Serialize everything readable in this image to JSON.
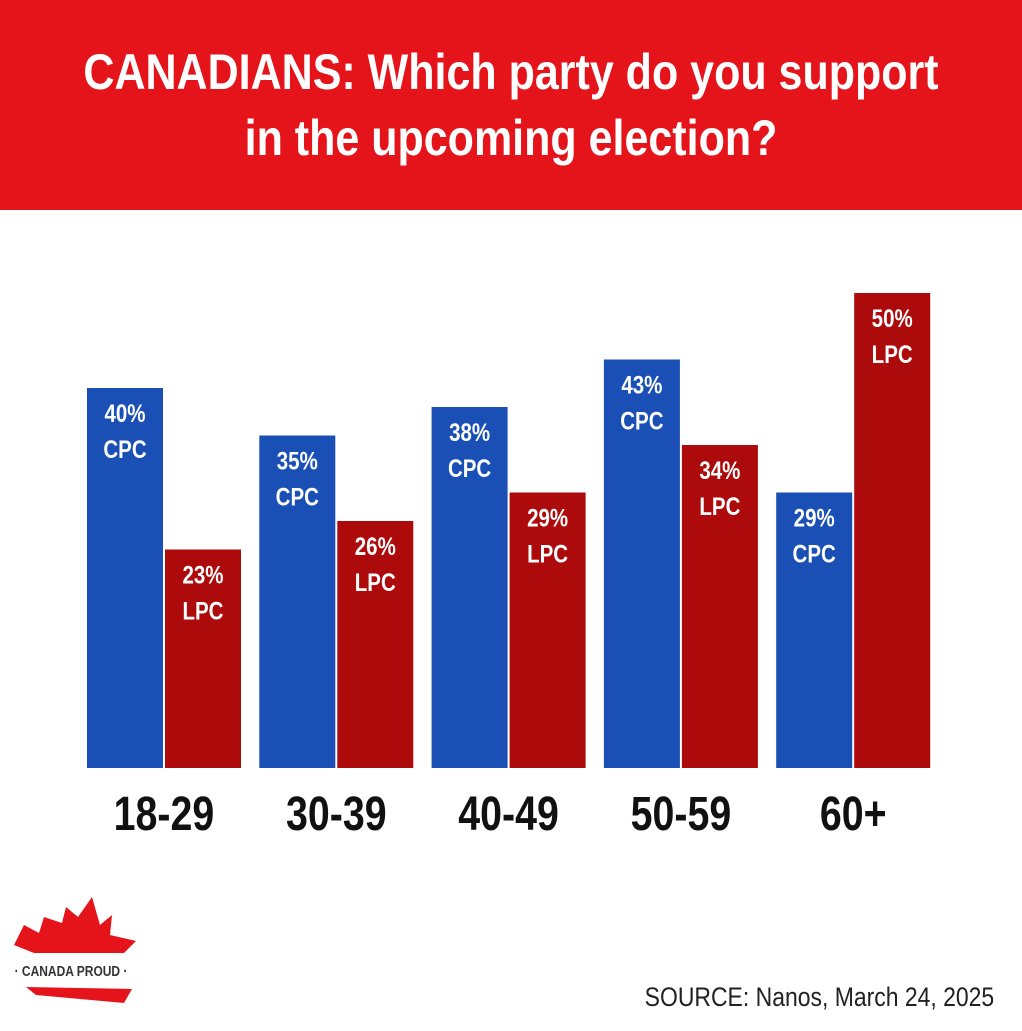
{
  "title": "CANADIANS: Which party do you support in the upcoming election?",
  "source": "SOURCE: Nanos, March 24, 2025",
  "logo_text": "CANADA PROUD",
  "colors": {
    "banner": "#e5141b",
    "cpc": "#1a4fb5",
    "lpc": "#ad0a0c"
  },
  "chart_data": {
    "type": "bar",
    "title": "CANADIANS: Which party do you support in the upcoming election?",
    "categories": [
      "18-29",
      "30-39",
      "40-49",
      "50-59",
      "60+"
    ],
    "series": [
      {
        "name": "CPC",
        "values": [
          40,
          35,
          38,
          43,
          29
        ]
      },
      {
        "name": "LPC",
        "values": [
          23,
          26,
          29,
          34,
          50
        ]
      }
    ],
    "xlabel": "",
    "ylabel": "",
    "ylim": [
      0,
      50
    ],
    "grid": false,
    "unit": "%"
  }
}
